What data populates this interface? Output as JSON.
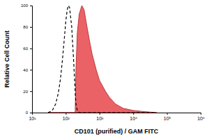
{
  "chart_data": {
    "type": "area",
    "x_label": "CD101 (purified) / GAM FITC",
    "y_label": "Relative Cell Count",
    "log": "x",
    "x": [
      30,
      40,
      50,
      60,
      70,
      80,
      90,
      100,
      110,
      120,
      130,
      150,
      170,
      190,
      200,
      220,
      250,
      300,
      350,
      400,
      500,
      600,
      800,
      1000,
      1500,
      2000,
      3000,
      5000,
      10000,
      20000,
      50000
    ],
    "series": [
      {
        "type": "line",
        "line_style": "dashed",
        "color": "#000000",
        "values": [
          0,
          2,
          8,
          18,
          32,
          50,
          68,
          85,
          96,
          100,
          98,
          80,
          50,
          20,
          8,
          2,
          0,
          0,
          0,
          0,
          0,
          0,
          0,
          0,
          0,
          0,
          0,
          0,
          0,
          0,
          0
        ]
      },
      {
        "type": "area",
        "color": "#e8474b",
        "values": [
          0,
          0,
          0,
          0,
          0,
          0,
          0,
          0,
          0,
          0,
          0,
          0,
          0,
          0,
          40,
          75,
          92,
          100,
          96,
          85,
          68,
          55,
          40,
          30,
          20,
          14,
          8,
          4,
          2,
          1,
          0
        ]
      }
    ],
    "xlim": [
      10,
      1000000
    ],
    "xticks": [
      {
        "value": 10,
        "label": "10¹"
      },
      {
        "value": 100,
        "label": "10²"
      },
      {
        "value": 1000,
        "label": "10³"
      },
      {
        "value": 10000,
        "label": "10⁴"
      },
      {
        "value": 100000,
        "label": "10⁵"
      },
      {
        "value": 1000000,
        "label": "10⁶"
      }
    ],
    "ylim": [
      0,
      100
    ],
    "yticks": [
      0,
      20,
      40,
      60,
      80,
      100
    ]
  }
}
